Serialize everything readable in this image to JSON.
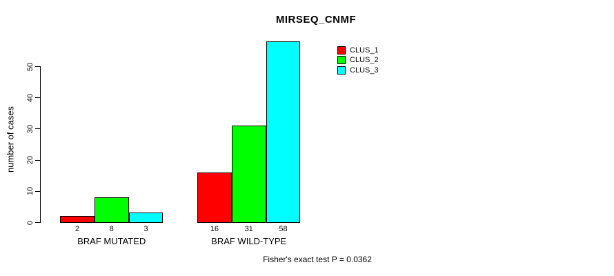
{
  "title": "MIRSEQ_CNMF",
  "footnote": "Fisher's exact test P = 0.0362",
  "colors": {
    "clus_1": "#ff0000",
    "clus_2": "#00ff00",
    "clus_3": "#00ffff",
    "axis": "#000000",
    "background": "#ffffff"
  },
  "chart_data": {
    "type": "bar",
    "title": "MIRSEQ_CNMF",
    "xlabel": "",
    "ylabel": "number of cases",
    "categories": [
      "BRAF MUTATED",
      "BRAF WILD-TYPE"
    ],
    "series": [
      {
        "name": "CLUS_1",
        "color": "#ff0000",
        "values": [
          2,
          16
        ]
      },
      {
        "name": "CLUS_2",
        "color": "#00ff00",
        "values": [
          8,
          31
        ]
      },
      {
        "name": "CLUS_3",
        "color": "#00ffff",
        "values": [
          3,
          58
        ]
      }
    ],
    "yticks": [
      0,
      10,
      20,
      30,
      40,
      50
    ],
    "ylim": [
      0,
      58
    ],
    "grid": false,
    "legend_position": "top-right",
    "bar_value_labels_shown": true,
    "annotation": "Fisher's exact test P = 0.0362"
  }
}
